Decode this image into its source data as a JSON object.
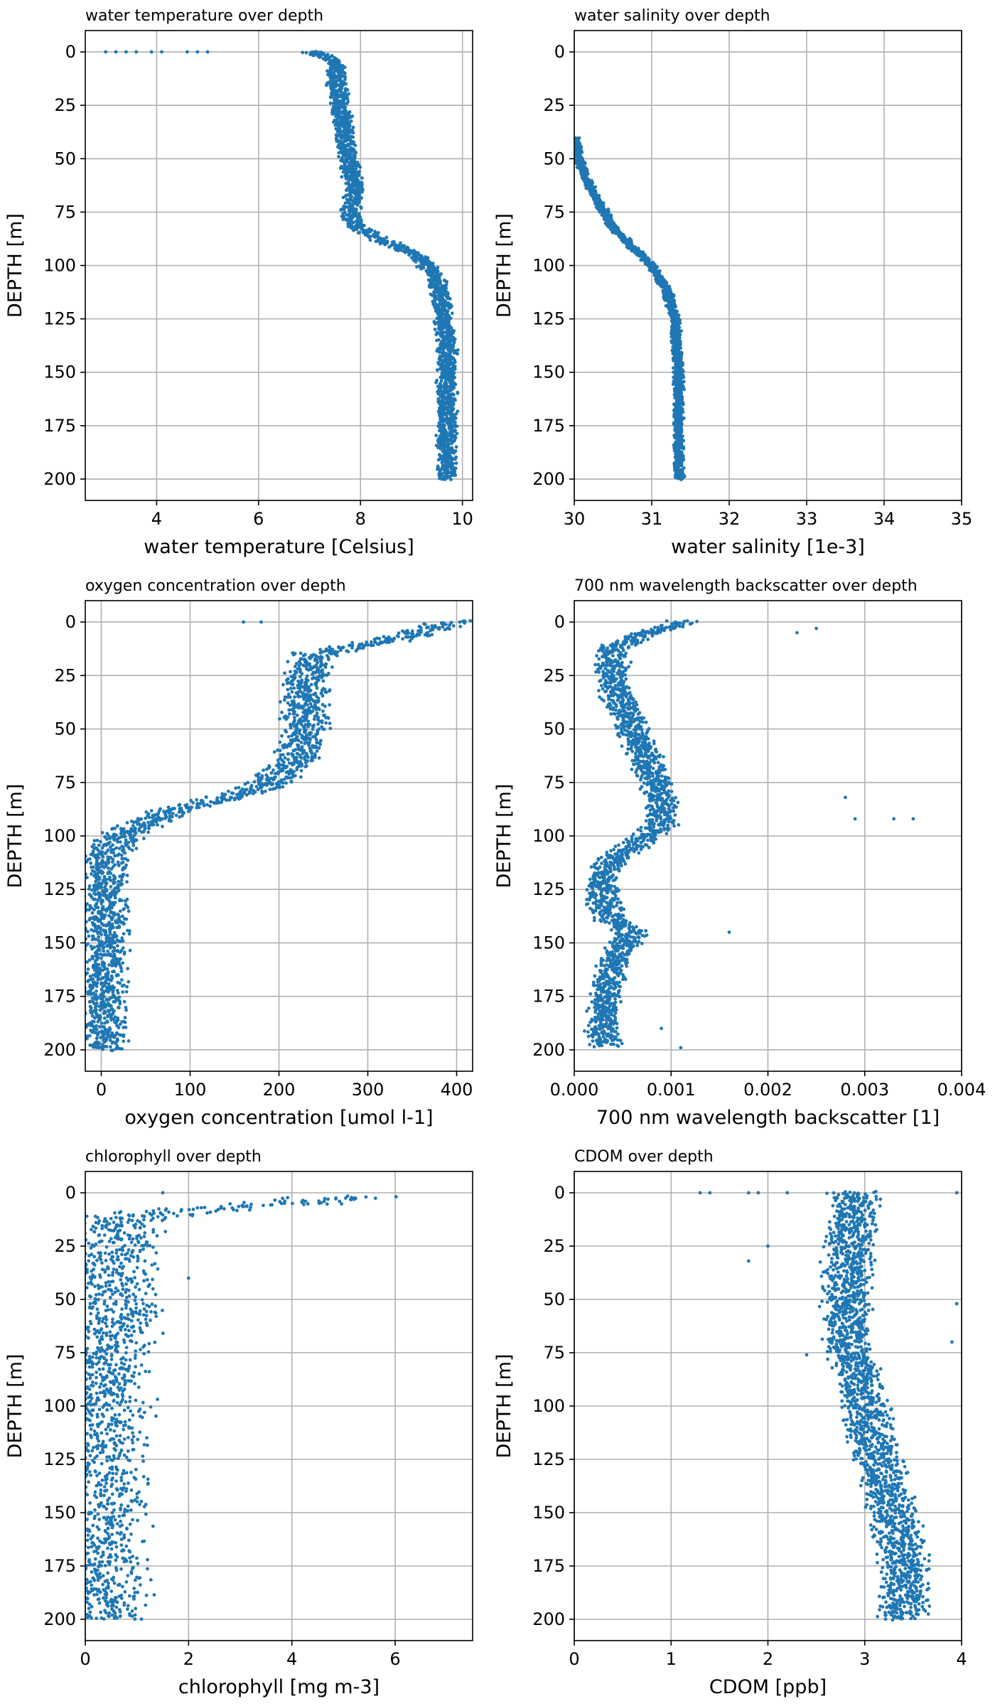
{
  "figure": {
    "marker_color": "#1f77b4",
    "grid_color": "#b0b0b0"
  },
  "chart_data": [
    {
      "type": "scatter",
      "title": "water temperature over depth",
      "xlabel": "water temperature [Celsius]",
      "ylabel": "DEPTH [m]",
      "xlim": [
        2.6,
        10.2
      ],
      "ylim": [
        210,
        -10
      ],
      "xticks": [
        4,
        6,
        8,
        10
      ],
      "xtick_labels": [
        "4",
        "6",
        "8",
        "10"
      ],
      "yticks": [
        0,
        25,
        50,
        75,
        100,
        125,
        150,
        175,
        200
      ],
      "ytick_labels": [
        "0",
        "25",
        "50",
        "75",
        "100",
        "125",
        "150",
        "175",
        "200"
      ],
      "profile": [
        [
          7.0,
          0
        ],
        [
          7.5,
          4
        ],
        [
          7.5,
          10
        ],
        [
          7.6,
          25
        ],
        [
          7.7,
          40
        ],
        [
          7.8,
          55
        ],
        [
          7.9,
          65
        ],
        [
          7.8,
          75
        ],
        [
          7.9,
          82
        ],
        [
          8.4,
          88
        ],
        [
          9.1,
          95
        ],
        [
          9.5,
          105
        ],
        [
          9.6,
          120
        ],
        [
          9.7,
          140
        ],
        [
          9.7,
          170
        ],
        [
          9.7,
          200
        ]
      ],
      "spread": 0.45,
      "outliers": [
        [
          3.0,
          0
        ],
        [
          3.2,
          0
        ],
        [
          3.4,
          0
        ],
        [
          3.6,
          0
        ],
        [
          3.9,
          0
        ],
        [
          4.1,
          0
        ],
        [
          4.6,
          0
        ],
        [
          4.8,
          0
        ],
        [
          5.0,
          0
        ]
      ]
    },
    {
      "type": "scatter",
      "title": "water salinity over depth",
      "xlabel": "water salinity [1e-3]",
      "ylabel": "DEPTH [m]",
      "xlim": [
        30,
        35
      ],
      "ylim": [
        210,
        -10
      ],
      "xticks": [
        30,
        31,
        32,
        33,
        34,
        35
      ],
      "xtick_labels": [
        "30",
        "31",
        "32",
        "33",
        "34",
        "35"
      ],
      "yticks": [
        0,
        25,
        50,
        75,
        100,
        125,
        150,
        175,
        200
      ],
      "ytick_labels": [
        "0",
        "25",
        "50",
        "75",
        "100",
        "125",
        "150",
        "175",
        "200"
      ],
      "profile": [
        [
          30.0,
          40
        ],
        [
          30.1,
          55
        ],
        [
          30.3,
          70
        ],
        [
          30.5,
          82
        ],
        [
          30.8,
          93
        ],
        [
          31.0,
          100
        ],
        [
          31.2,
          112
        ],
        [
          31.3,
          125
        ],
        [
          31.35,
          150
        ],
        [
          31.35,
          200
        ]
      ],
      "spread": 0.15,
      "outliers": []
    },
    {
      "type": "scatter",
      "title": "oxygen concentration over depth",
      "xlabel": "oxygen concentration [umol l-1]",
      "ylabel": "DEPTH [m]",
      "xlim": [
        -18,
        418
      ],
      "ylim": [
        210,
        -10
      ],
      "xticks": [
        0,
        100,
        200,
        300,
        400
      ],
      "xtick_labels": [
        "0",
        "100",
        "200",
        "300",
        "400"
      ],
      "yticks": [
        0,
        25,
        50,
        75,
        100,
        125,
        150,
        175,
        200
      ],
      "ytick_labels": [
        "0",
        "25",
        "50",
        "75",
        "100",
        "125",
        "150",
        "175",
        "200"
      ],
      "profile": [
        [
          400,
          0
        ],
        [
          330,
          8
        ],
        [
          240,
          15
        ],
        [
          230,
          30
        ],
        [
          230,
          50
        ],
        [
          220,
          65
        ],
        [
          180,
          78
        ],
        [
          80,
          88
        ],
        [
          20,
          100
        ],
        [
          8,
          110
        ],
        [
          5,
          125
        ],
        [
          4,
          150
        ],
        [
          4,
          200
        ]
      ],
      "spread": 60,
      "outliers": [
        [
          160,
          0
        ],
        [
          180,
          0
        ]
      ]
    },
    {
      "type": "scatter",
      "title": "700 nm wavelength backscatter over depth",
      "xlabel": "700 nm wavelength backscatter [1]",
      "ylabel": "DEPTH [m]",
      "xlim": [
        0,
        0.004
      ],
      "ylim": [
        210,
        -10
      ],
      "xticks": [
        0,
        0.001,
        0.002,
        0.003,
        0.004
      ],
      "xtick_labels": [
        "0.000",
        "0.001",
        "0.002",
        "0.003",
        "0.004"
      ],
      "yticks": [
        0,
        25,
        50,
        75,
        100,
        125,
        150,
        175,
        200
      ],
      "ytick_labels": [
        "0",
        "25",
        "50",
        "75",
        "100",
        "125",
        "150",
        "175",
        "200"
      ],
      "profile": [
        [
          0.0011,
          0
        ],
        [
          0.0008,
          5
        ],
        [
          0.0004,
          12
        ],
        [
          0.0004,
          30
        ],
        [
          0.0006,
          50
        ],
        [
          0.0008,
          70
        ],
        [
          0.0009,
          85
        ],
        [
          0.0009,
          95
        ],
        [
          0.0006,
          105
        ],
        [
          0.0003,
          115
        ],
        [
          0.0003,
          130
        ],
        [
          0.0004,
          140
        ],
        [
          0.0006,
          145
        ],
        [
          0.0004,
          160
        ],
        [
          0.0003,
          180
        ],
        [
          0.0003,
          198
        ]
      ],
      "spread": 0.0004,
      "outliers": [
        [
          0.0023,
          5
        ],
        [
          0.0025,
          3
        ],
        [
          0.0028,
          82
        ],
        [
          0.0033,
          92
        ],
        [
          0.0035,
          92
        ],
        [
          0.0016,
          145
        ],
        [
          0.0011,
          199
        ],
        [
          0.0009,
          190
        ],
        [
          0.0029,
          92
        ]
      ]
    },
    {
      "type": "scatter",
      "title": "chlorophyll over depth",
      "xlabel": "chlorophyll [mg m-3]",
      "ylabel": "DEPTH [m]",
      "xlim": [
        0,
        7.5
      ],
      "ylim": [
        210,
        -10
      ],
      "xticks": [
        0,
        2,
        4,
        6
      ],
      "xtick_labels": [
        "0",
        "2",
        "4",
        "6"
      ],
      "yticks": [
        0,
        25,
        50,
        75,
        100,
        125,
        150,
        175,
        200
      ],
      "ytick_labels": [
        "0",
        "25",
        "50",
        "75",
        "100",
        "125",
        "150",
        "175",
        "200"
      ],
      "profile": [
        [
          5.0,
          2
        ],
        [
          3.5,
          6
        ],
        [
          1.5,
          9
        ],
        [
          0.5,
          13
        ],
        [
          0.4,
          25
        ],
        [
          0.4,
          45
        ],
        [
          0.4,
          60
        ],
        [
          0.3,
          80
        ],
        [
          0.2,
          100
        ],
        [
          0.15,
          130
        ],
        [
          0.15,
          200
        ]
      ],
      "spread": 2.4,
      "outliers": [
        [
          1.5,
          0
        ],
        [
          2.0,
          40
        ],
        [
          0.9,
          60
        ],
        [
          0.7,
          82
        ],
        [
          0.35,
          190
        ],
        [
          0.3,
          142
        ]
      ]
    },
    {
      "type": "scatter",
      "title": "CDOM over depth",
      "xlabel": "CDOM [ppb]",
      "ylabel": "DEPTH [m]",
      "xlim": [
        0,
        4
      ],
      "ylim": [
        210,
        -10
      ],
      "xticks": [
        0,
        1,
        2,
        3,
        4
      ],
      "xtick_labels": [
        "0",
        "1",
        "2",
        "3",
        "4"
      ],
      "yticks": [
        0,
        25,
        50,
        75,
        100,
        125,
        150,
        175,
        200
      ],
      "ytick_labels": [
        "0",
        "25",
        "50",
        "75",
        "100",
        "125",
        "150",
        "175",
        "200"
      ],
      "profile": [
        [
          2.9,
          0
        ],
        [
          2.85,
          25
        ],
        [
          2.8,
          50
        ],
        [
          2.85,
          75
        ],
        [
          3.0,
          100
        ],
        [
          3.15,
          125
        ],
        [
          3.3,
          150
        ],
        [
          3.4,
          175
        ],
        [
          3.4,
          200
        ]
      ],
      "spread": 0.6,
      "outliers": [
        [
          1.3,
          0
        ],
        [
          1.4,
          0
        ],
        [
          1.8,
          0
        ],
        [
          1.9,
          0
        ],
        [
          2.2,
          0
        ],
        [
          1.8,
          32
        ],
        [
          2.0,
          25
        ],
        [
          2.4,
          76
        ],
        [
          3.9,
          70
        ],
        [
          3.95,
          52
        ],
        [
          3.95,
          0
        ]
      ]
    }
  ]
}
